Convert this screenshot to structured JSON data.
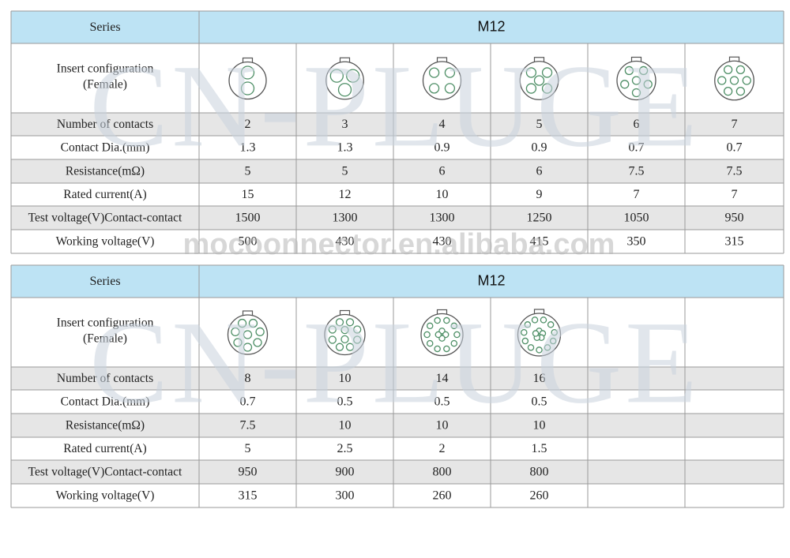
{
  "watermark": "CN-PLUGE",
  "site": "mocoonnector.en.alibaba.com",
  "tables": [
    {
      "series_label": "Series",
      "series_value": "M12",
      "insert_label": [
        "Insert configuration",
        "(Female)"
      ],
      "rows": [
        {
          "label": "Number of contacts",
          "values": [
            2,
            3,
            4,
            5,
            6,
            7
          ]
        },
        {
          "label": "Contact Dia.(mm)",
          "values": [
            1.3,
            1.3,
            0.9,
            0.9,
            0.7,
            0.7
          ]
        },
        {
          "label": "Resistance(mΩ)",
          "values": [
            5,
            5,
            6,
            6,
            7.5,
            7.5
          ]
        },
        {
          "label": "Rated current(A)",
          "values": [
            15,
            12,
            10,
            9,
            7,
            7
          ]
        },
        {
          "label": "Test voltage(V)Contact-contact",
          "values": [
            1500,
            1300,
            1300,
            1250,
            1050,
            950
          ]
        },
        {
          "label": "Working voltage(V)",
          "values": [
            500,
            430,
            430,
            415,
            350,
            315
          ]
        }
      ]
    },
    {
      "series_label": "Series",
      "series_value": "M12",
      "insert_label": [
        "Insert configuration",
        "(Female)"
      ],
      "rows": [
        {
          "label": "Number of contacts",
          "values": [
            8,
            10,
            14,
            16
          ]
        },
        {
          "label": "Contact Dia.(mm)",
          "values": [
            0.7,
            0.5,
            0.5,
            0.5
          ]
        },
        {
          "label": "Resistance(mΩ)",
          "values": [
            7.5,
            10,
            10,
            10
          ]
        },
        {
          "label": "Rated current(A)",
          "values": [
            5,
            2.5,
            2,
            1.5
          ]
        },
        {
          "label": "Test voltage(V)Contact-contact",
          "values": [
            950,
            900,
            800,
            800
          ]
        },
        {
          "label": "Working voltage(V)",
          "values": [
            315,
            300,
            260,
            260
          ]
        }
      ]
    }
  ]
}
